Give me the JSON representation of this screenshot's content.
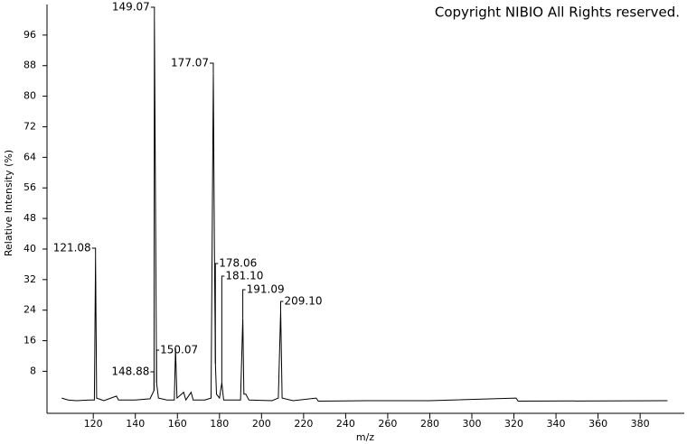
{
  "chart_data": {
    "type": "line",
    "title": "Copyright NIBIO All Rights reserved.",
    "x_label": "m/z",
    "y_label": "Relative Intensity (%)",
    "xlim": [
      98,
      401
    ],
    "ylim": [
      -3,
      104
    ],
    "xticks": [
      120,
      140,
      160,
      180,
      200,
      220,
      240,
      260,
      280,
      300,
      320,
      340,
      360,
      380
    ],
    "yticks": [
      8,
      16,
      24,
      32,
      40,
      48,
      56,
      64,
      72,
      80,
      88,
      96
    ],
    "series": [
      {
        "name": "spectrum",
        "color": "#000000",
        "x": [
          105,
          108,
          112,
          118,
          120.5,
          121.08,
          121.6,
          125,
          131,
          132,
          140,
          147,
          148.88,
          149.07,
          150.07,
          151,
          155,
          158.5,
          159.1,
          159.8,
          163,
          164,
          166.5,
          167.5,
          173,
          176,
          177.07,
          177.6,
          178.06,
          178.6,
          180,
          181.1,
          182,
          190,
          191.09,
          191.6,
          192.5,
          194,
          205,
          208,
          209.1,
          209.8,
          215,
          226,
          227,
          250,
          280,
          321,
          322,
          393
        ],
        "values": [
          1,
          0.5,
          0.3,
          0.5,
          0.5,
          38,
          1,
          0.3,
          1.5,
          0.5,
          0.5,
          0.8,
          3,
          101,
          5,
          1,
          0.5,
          0.5,
          14,
          1,
          2.5,
          0.5,
          2.5,
          0.5,
          0.5,
          1,
          86,
          40,
          10,
          2,
          1,
          5,
          0.5,
          0.5,
          22,
          2,
          2,
          0.5,
          0.3,
          1,
          24,
          1,
          0.3,
          1,
          0.2,
          0.3,
          0.3,
          1,
          0.2,
          0.3
        ]
      }
    ],
    "peaks": {
      "mz": [
        121.08,
        148.88,
        149.07,
        150.07,
        177.07,
        178.06,
        181.1,
        191.09,
        209.1
      ],
      "intensity": [
        38,
        3,
        101,
        5,
        86,
        10,
        5,
        22,
        24
      ],
      "value_labels": [
        "121.08",
        "148.88",
        "149.07",
        "150.07",
        "177.07",
        "178.06",
        "181.10",
        "191.09",
        "209.10"
      ]
    }
  }
}
